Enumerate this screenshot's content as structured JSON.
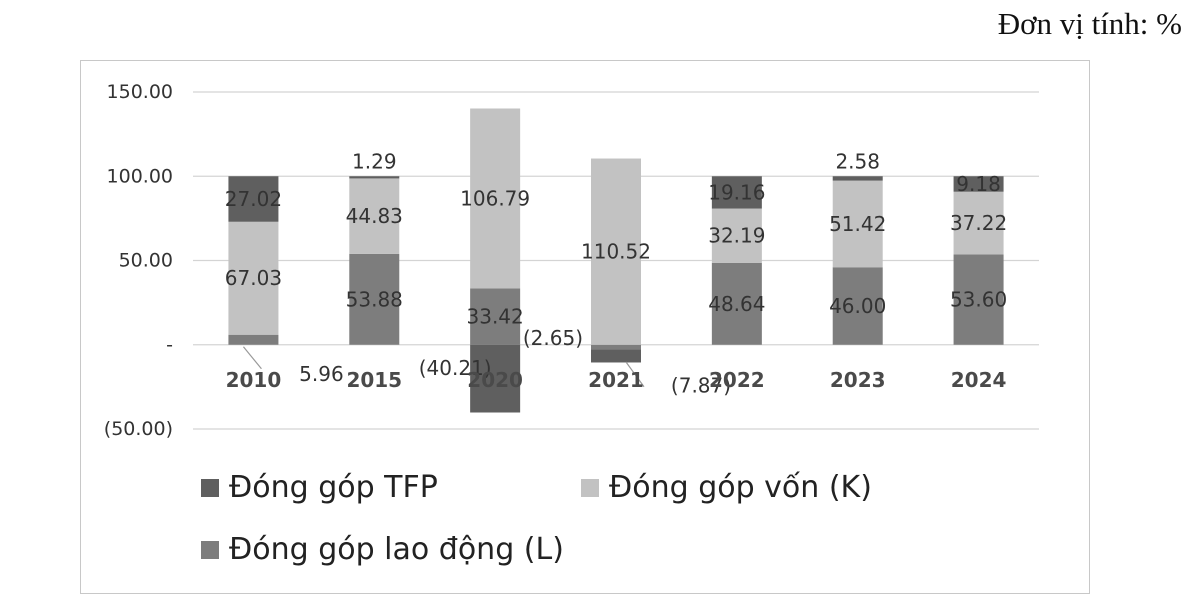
{
  "unit_label": "Đơn vị tính: %",
  "chart_data": {
    "type": "bar",
    "stacked": true,
    "categories": [
      "2010",
      "2015",
      "2020",
      "2021",
      "2022",
      "2023",
      "2024"
    ],
    "ylim": [
      -50,
      150
    ],
    "yticks": [
      -50,
      0,
      50,
      100,
      150
    ],
    "ytick_labels": [
      "(50.00)",
      "-",
      "50.00",
      "100.00",
      "150.00"
    ],
    "grid": true,
    "legend_position": "bottom",
    "series": [
      {
        "name": "Đóng góp lao động (L)",
        "values": [
          5.96,
          53.88,
          33.42,
          -2.65,
          48.64,
          46.0,
          53.6
        ],
        "labels": [
          "5.96",
          "53.88",
          "33.42",
          "(2.65)",
          "48.64",
          "46.00",
          "53.60"
        ],
        "color": "#7d7d7d"
      },
      {
        "name": "Đóng góp vốn (K)",
        "values": [
          67.03,
          44.83,
          106.79,
          110.52,
          32.19,
          51.42,
          37.22
        ],
        "labels": [
          "67.03",
          "44.83",
          "106.79",
          "110.52",
          "32.19",
          "51.42",
          "37.22"
        ],
        "color": "#c2c2c2"
      },
      {
        "name": "Đóng góp TFP",
        "values": [
          27.02,
          1.29,
          -40.21,
          -7.87,
          19.16,
          2.58,
          9.18
        ],
        "labels": [
          "27.02",
          "1.29",
          "(40.21)",
          "(7.87)",
          "19.16",
          "2.58",
          "9.18"
        ],
        "color": "#5f5f5f"
      }
    ],
    "legend_order": [
      "Đóng góp TFP",
      "Đóng góp vốn (K)",
      "Đóng góp lao động (L)"
    ]
  }
}
